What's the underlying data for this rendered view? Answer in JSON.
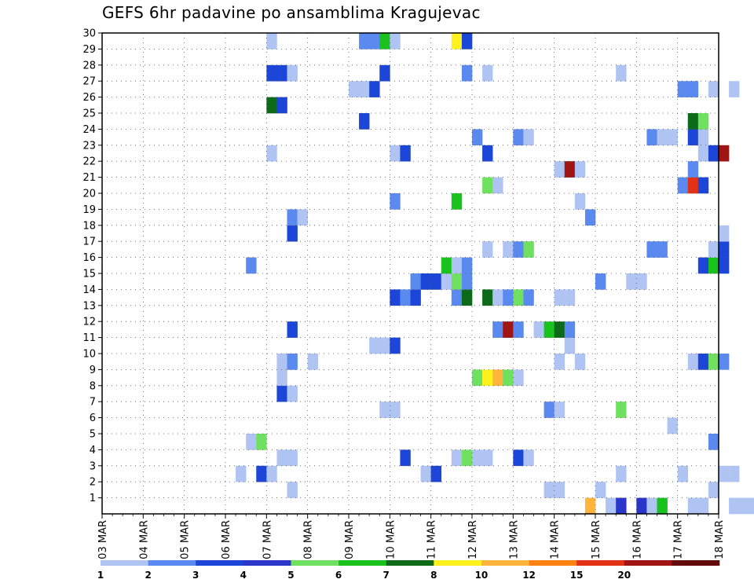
{
  "chart_data": {
    "type": "heatmap",
    "title": "GEFS 6hr padavine po ansamblima Kragujevac",
    "x_tick_labels": [
      "03 MAR",
      "04 MAR",
      "05 MAR",
      "06 MAR",
      "07 MAR",
      "08 MAR",
      "09 MAR",
      "10 MAR",
      "11 MAR",
      "12 MAR",
      "13 MAR",
      "14 MAR",
      "15 MAR",
      "16 MAR",
      "17 MAR",
      "18 MAR"
    ],
    "y_tick_labels": [
      "1",
      "2",
      "3",
      "4",
      "5",
      "6",
      "7",
      "8",
      "9",
      "10",
      "11",
      "12",
      "13",
      "14",
      "15",
      "16",
      "17",
      "18",
      "19",
      "20",
      "21",
      "22",
      "23",
      "24",
      "25",
      "26",
      "27",
      "28",
      "29",
      "30"
    ],
    "xlim_days": [
      3,
      18
    ],
    "ylim": [
      0,
      30
    ],
    "grid": true,
    "colorbar": {
      "labels": [
        "1",
        "2",
        "3",
        "4",
        "5",
        "6",
        "7",
        "8",
        "10",
        "12",
        "15",
        "20"
      ],
      "colors": [
        "#b0c4f4",
        "#5a8af0",
        "#1b46d8",
        "#2a36c8",
        "#70e060",
        "#19c21c",
        "#0c6a18",
        "#fff21c",
        "#ffb43c",
        "#ff8212",
        "#e13215",
        "#a01414",
        "#640a0a"
      ]
    },
    "cells": [
      {
        "m": 0,
        "t": 47,
        "c": 8
      },
      {
        "m": 0,
        "t": 49,
        "c": 0
      },
      {
        "m": 0,
        "t": 50,
        "c": 3
      },
      {
        "m": 0,
        "t": 52,
        "c": 3
      },
      {
        "m": 0,
        "t": 53,
        "c": 0
      },
      {
        "m": 0,
        "t": 54,
        "c": 5
      },
      {
        "m": 0,
        "t": 57,
        "c": 0
      },
      {
        "m": 0,
        "t": 58,
        "c": 0
      },
      {
        "m": 0,
        "t": 61,
        "c": 0
      },
      {
        "m": 0,
        "t": 62,
        "c": 0
      },
      {
        "m": 0,
        "t": 63,
        "c": 0
      },
      {
        "m": 1,
        "t": 18,
        "c": 0
      },
      {
        "m": 1,
        "t": 43,
        "c": 0
      },
      {
        "m": 1,
        "t": 44,
        "c": 0
      },
      {
        "m": 1,
        "t": 48,
        "c": 0
      },
      {
        "m": 1,
        "t": 59,
        "c": 0
      },
      {
        "m": 2,
        "t": 13,
        "c": 0
      },
      {
        "m": 2,
        "t": 15,
        "c": 2
      },
      {
        "m": 2,
        "t": 16,
        "c": 0
      },
      {
        "m": 2,
        "t": 31,
        "c": 0
      },
      {
        "m": 2,
        "t": 32,
        "c": 2
      },
      {
        "m": 2,
        "t": 50,
        "c": 0
      },
      {
        "m": 2,
        "t": 56,
        "c": 0
      },
      {
        "m": 2,
        "t": 60,
        "c": 0
      },
      {
        "m": 2,
        "t": 61,
        "c": 0
      },
      {
        "m": 3,
        "t": 17,
        "c": 0
      },
      {
        "m": 3,
        "t": 18,
        "c": 0
      },
      {
        "m": 3,
        "t": 29,
        "c": 2
      },
      {
        "m": 3,
        "t": 34,
        "c": 0
      },
      {
        "m": 3,
        "t": 35,
        "c": 4
      },
      {
        "m": 3,
        "t": 36,
        "c": 0
      },
      {
        "m": 3,
        "t": 37,
        "c": 0
      },
      {
        "m": 3,
        "t": 40,
        "c": 2
      },
      {
        "m": 3,
        "t": 41,
        "c": 0
      },
      {
        "m": 4,
        "t": 14,
        "c": 0
      },
      {
        "m": 4,
        "t": 15,
        "c": 4
      },
      {
        "m": 4,
        "t": 59,
        "c": 1
      },
      {
        "m": 5,
        "t": 55,
        "c": 0
      },
      {
        "m": 6,
        "t": 27,
        "c": 0
      },
      {
        "m": 6,
        "t": 28,
        "c": 0
      },
      {
        "m": 6,
        "t": 43,
        "c": 1
      },
      {
        "m": 6,
        "t": 44,
        "c": 0
      },
      {
        "m": 6,
        "t": 50,
        "c": 4
      },
      {
        "m": 7,
        "t": 17,
        "c": 2
      },
      {
        "m": 7,
        "t": 18,
        "c": 0
      },
      {
        "m": 8,
        "t": 17,
        "c": 0
      },
      {
        "m": 8,
        "t": 36,
        "c": 4
      },
      {
        "m": 8,
        "t": 37,
        "c": 7
      },
      {
        "m": 8,
        "t": 38,
        "c": 8
      },
      {
        "m": 8,
        "t": 39,
        "c": 4
      },
      {
        "m": 8,
        "t": 40,
        "c": 0
      },
      {
        "m": 9,
        "t": 17,
        "c": 0
      },
      {
        "m": 9,
        "t": 18,
        "c": 1
      },
      {
        "m": 9,
        "t": 20,
        "c": 0
      },
      {
        "m": 9,
        "t": 44,
        "c": 0
      },
      {
        "m": 9,
        "t": 46,
        "c": 0
      },
      {
        "m": 9,
        "t": 57,
        "c": 0
      },
      {
        "m": 9,
        "t": 58,
        "c": 2
      },
      {
        "m": 9,
        "t": 59,
        "c": 4
      },
      {
        "m": 9,
        "t": 60,
        "c": 1
      },
      {
        "m": 10,
        "t": 26,
        "c": 0
      },
      {
        "m": 10,
        "t": 27,
        "c": 0
      },
      {
        "m": 10,
        "t": 28,
        "c": 2
      },
      {
        "m": 10,
        "t": 45,
        "c": 0
      },
      {
        "m": 11,
        "t": 18,
        "c": 2
      },
      {
        "m": 11,
        "t": 38,
        "c": 1
      },
      {
        "m": 11,
        "t": 39,
        "c": 11
      },
      {
        "m": 11,
        "t": 40,
        "c": 1
      },
      {
        "m": 11,
        "t": 42,
        "c": 0
      },
      {
        "m": 11,
        "t": 43,
        "c": 5
      },
      {
        "m": 11,
        "t": 44,
        "c": 6
      },
      {
        "m": 11,
        "t": 45,
        "c": 1
      },
      {
        "m": 13,
        "t": 28,
        "c": 2
      },
      {
        "m": 13,
        "t": 29,
        "c": 1
      },
      {
        "m": 13,
        "t": 30,
        "c": 2
      },
      {
        "m": 13,
        "t": 34,
        "c": 1
      },
      {
        "m": 13,
        "t": 35,
        "c": 6
      },
      {
        "m": 13,
        "t": 37,
        "c": 6
      },
      {
        "m": 13,
        "t": 38,
        "c": 0
      },
      {
        "m": 13,
        "t": 39,
        "c": 1
      },
      {
        "m": 13,
        "t": 40,
        "c": 4
      },
      {
        "m": 13,
        "t": 41,
        "c": 1
      },
      {
        "m": 13,
        "t": 44,
        "c": 0
      },
      {
        "m": 13,
        "t": 45,
        "c": 0
      },
      {
        "m": 14,
        "t": 30,
        "c": 1
      },
      {
        "m": 14,
        "t": 31,
        "c": 2
      },
      {
        "m": 14,
        "t": 32,
        "c": 2
      },
      {
        "m": 14,
        "t": 33,
        "c": 0
      },
      {
        "m": 14,
        "t": 34,
        "c": 4
      },
      {
        "m": 14,
        "t": 35,
        "c": 1
      },
      {
        "m": 14,
        "t": 48,
        "c": 1
      },
      {
        "m": 14,
        "t": 51,
        "c": 0
      },
      {
        "m": 14,
        "t": 52,
        "c": 0
      },
      {
        "m": 15,
        "t": 14,
        "c": 1
      },
      {
        "m": 15,
        "t": 33,
        "c": 5
      },
      {
        "m": 15,
        "t": 34,
        "c": 0
      },
      {
        "m": 15,
        "t": 35,
        "c": 1
      },
      {
        "m": 15,
        "t": 58,
        "c": 2
      },
      {
        "m": 15,
        "t": 59,
        "c": 5
      },
      {
        "m": 15,
        "t": 60,
        "c": 2
      },
      {
        "m": 16,
        "t": 37,
        "c": 0
      },
      {
        "m": 16,
        "t": 39,
        "c": 0
      },
      {
        "m": 16,
        "t": 40,
        "c": 1
      },
      {
        "m": 16,
        "t": 41,
        "c": 4
      },
      {
        "m": 16,
        "t": 53,
        "c": 1
      },
      {
        "m": 16,
        "t": 54,
        "c": 1
      },
      {
        "m": 16,
        "t": 59,
        "c": 0
      },
      {
        "m": 16,
        "t": 60,
        "c": 2
      },
      {
        "m": 17,
        "t": 18,
        "c": 2
      },
      {
        "m": 17,
        "t": 60,
        "c": 0
      },
      {
        "m": 18,
        "t": 18,
        "c": 1
      },
      {
        "m": 18,
        "t": 19,
        "c": 0
      },
      {
        "m": 18,
        "t": 47,
        "c": 1
      },
      {
        "m": 19,
        "t": 28,
        "c": 1
      },
      {
        "m": 19,
        "t": 34,
        "c": 5
      },
      {
        "m": 19,
        "t": 46,
        "c": 0
      },
      {
        "m": 20,
        "t": 37,
        "c": 4
      },
      {
        "m": 20,
        "t": 38,
        "c": 0
      },
      {
        "m": 20,
        "t": 56,
        "c": 1
      },
      {
        "m": 20,
        "t": 57,
        "c": 10
      },
      {
        "m": 20,
        "t": 58,
        "c": 2
      },
      {
        "m": 21,
        "t": 44,
        "c": 0
      },
      {
        "m": 21,
        "t": 45,
        "c": 11
      },
      {
        "m": 21,
        "t": 46,
        "c": 0
      },
      {
        "m": 21,
        "t": 57,
        "c": 1
      },
      {
        "m": 22,
        "t": 16,
        "c": 0
      },
      {
        "m": 22,
        "t": 28,
        "c": 0
      },
      {
        "m": 22,
        "t": 29,
        "c": 2
      },
      {
        "m": 22,
        "t": 37,
        "c": 2
      },
      {
        "m": 22,
        "t": 58,
        "c": 0
      },
      {
        "m": 22,
        "t": 59,
        "c": 2
      },
      {
        "m": 22,
        "t": 60,
        "c": 11
      },
      {
        "m": 23,
        "t": 36,
        "c": 1
      },
      {
        "m": 23,
        "t": 40,
        "c": 1
      },
      {
        "m": 23,
        "t": 41,
        "c": 0
      },
      {
        "m": 23,
        "t": 53,
        "c": 1
      },
      {
        "m": 23,
        "t": 54,
        "c": 0
      },
      {
        "m": 23,
        "t": 55,
        "c": 0
      },
      {
        "m": 23,
        "t": 57,
        "c": 2
      },
      {
        "m": 23,
        "t": 58,
        "c": 0
      },
      {
        "m": 24,
        "t": 25,
        "c": 2
      },
      {
        "m": 24,
        "t": 57,
        "c": 6
      },
      {
        "m": 24,
        "t": 58,
        "c": 4
      },
      {
        "m": 25,
        "t": 16,
        "c": 6
      },
      {
        "m": 25,
        "t": 17,
        "c": 2
      },
      {
        "m": 26,
        "t": 24,
        "c": 0
      },
      {
        "m": 26,
        "t": 25,
        "c": 0
      },
      {
        "m": 26,
        "t": 26,
        "c": 2
      },
      {
        "m": 26,
        "t": 56,
        "c": 1
      },
      {
        "m": 26,
        "t": 57,
        "c": 1
      },
      {
        "m": 26,
        "t": 59,
        "c": 0
      },
      {
        "m": 26,
        "t": 61,
        "c": 0
      },
      {
        "m": 27,
        "t": 16,
        "c": 2
      },
      {
        "m": 27,
        "t": 17,
        "c": 2
      },
      {
        "m": 27,
        "t": 18,
        "c": 0
      },
      {
        "m": 27,
        "t": 27,
        "c": 2
      },
      {
        "m": 27,
        "t": 35,
        "c": 1
      },
      {
        "m": 27,
        "t": 37,
        "c": 0
      },
      {
        "m": 27,
        "t": 50,
        "c": 0
      },
      {
        "m": 29,
        "t": 16,
        "c": 0
      },
      {
        "m": 29,
        "t": 25,
        "c": 1
      },
      {
        "m": 29,
        "t": 26,
        "c": 1
      },
      {
        "m": 29,
        "t": 27,
        "c": 5
      },
      {
        "m": 29,
        "t": 28,
        "c": 0
      },
      {
        "m": 29,
        "t": 34,
        "c": 7
      },
      {
        "m": 29,
        "t": 35,
        "c": 2
      }
    ]
  }
}
